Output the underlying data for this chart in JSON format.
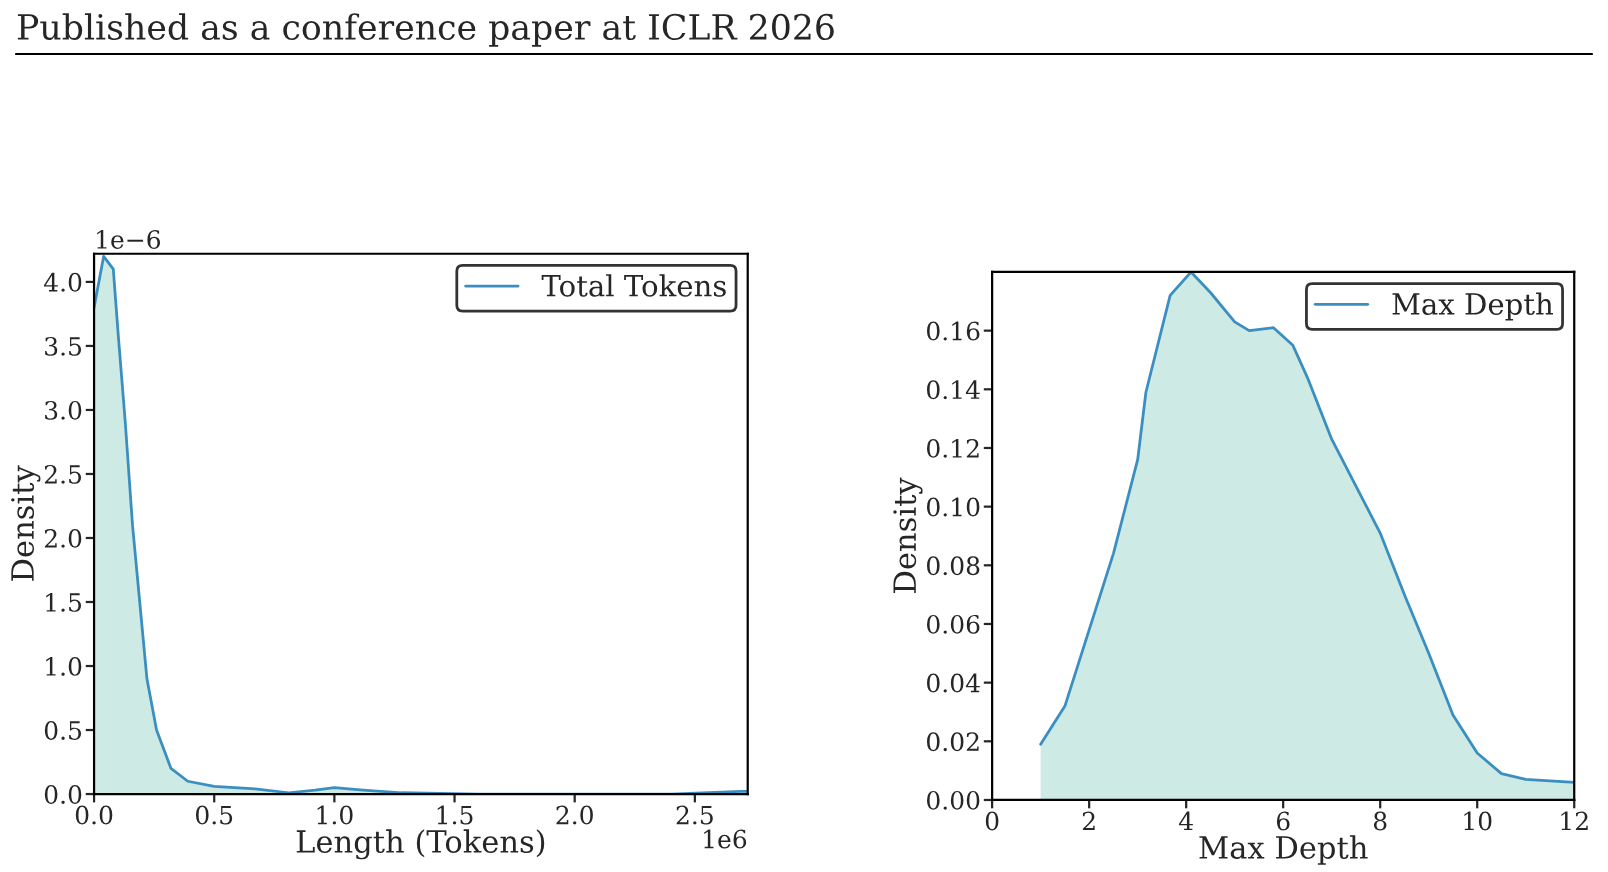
{
  "chart_data": [
    {
      "type": "area",
      "xlabel": "Length (Tokens)",
      "ylabel": "Density",
      "legend": "top right",
      "grid": false,
      "color": "#cdeae4",
      "annotations": [
        "1e−6",
        "1e6",
        "Published as a conference paper at ICLR 2026"
      ],
      "xlim": [
        0,
        2.72
      ],
      "ylim": [
        0,
        4.22
      ],
      "xticks": [
        {
          "value": 0,
          "label": "0.0"
        },
        {
          "value": 0.5,
          "label": "0.5"
        },
        {
          "value": 1,
          "label": "1.0"
        },
        {
          "value": 1.5,
          "label": "1.5"
        },
        {
          "value": 2,
          "label": "2.0"
        },
        {
          "value": 2.5,
          "label": "2.5"
        }
      ],
      "yticks": [
        {
          "value": 0,
          "label": "0.0"
        },
        {
          "value": 0.5,
          "label": "0.5"
        },
        {
          "value": 1,
          "label": "1.0"
        },
        {
          "value": 1.5,
          "label": "1.5"
        },
        {
          "value": 2,
          "label": "2.0"
        },
        {
          "value": 2.5,
          "label": "2.5"
        },
        {
          "value": 3,
          "label": "3.0"
        },
        {
          "value": 3.5,
          "label": "3.5"
        },
        {
          "value": 4,
          "label": "4.0"
        }
      ],
      "series": [
        {
          "name": "Total Tokens",
          "color": "#3a8fc0",
          "x": [
            0,
            0.04,
            0.08,
            0.1,
            0.13,
            0.16,
            0.19,
            0.22,
            0.26,
            0.32,
            0.39,
            0.5,
            0.67,
            0.81,
            0.92,
            1.0,
            1.12,
            1.28,
            1.6,
            2.0,
            2.4,
            2.69,
            2.72
          ],
          "values": [
            3.8,
            4.2,
            4.1,
            3.6,
            2.9,
            2.1,
            1.5,
            0.9,
            0.5,
            0.2,
            0.1,
            0.06,
            0.04,
            0.01,
            0.03,
            0.05,
            0.03,
            0.01,
            0,
            0,
            0,
            0.02,
            0.02
          ]
        }
      ]
    },
    {
      "type": "area",
      "xlabel": "Max Depth",
      "ylabel": "Density",
      "legend": "top right",
      "grid": false,
      "color": "#cdeae4",
      "xlim": [
        0,
        12
      ],
      "ylim": [
        0,
        0.18
      ],
      "xticks": [
        0,
        2,
        4,
        6,
        8,
        10,
        12
      ],
      "yticks": [
        {
          "value": 0,
          "label": "0.00"
        },
        {
          "value": 0.02,
          "label": "0.02"
        },
        {
          "value": 0.04,
          "label": "0.04"
        },
        {
          "value": 0.06,
          "label": "0.06"
        },
        {
          "value": 0.08,
          "label": "0.08"
        },
        {
          "value": 0.1,
          "label": "0.10"
        },
        {
          "value": 0.12,
          "label": "0.12"
        },
        {
          "value": 0.14,
          "label": "0.14"
        },
        {
          "value": 0.16,
          "label": "0.16"
        }
      ],
      "series": [
        {
          "name": "Max Depth",
          "color": "#3a8fc0",
          "x": [
            1,
            1.5,
            2,
            2.5,
            3,
            3.17,
            3.67,
            4.1,
            4.5,
            5,
            5.3,
            5.8,
            6.2,
            6.5,
            7,
            7.5,
            8,
            8.5,
            9,
            9.5,
            10,
            10.5,
            11,
            12
          ],
          "values": [
            0.019,
            0.032,
            0.058,
            0.084,
            0.116,
            0.139,
            0.172,
            0.18,
            0.173,
            0.163,
            0.16,
            0.161,
            0.155,
            0.144,
            0.123,
            0.107,
            0.091,
            0.07,
            0.05,
            0.029,
            0.016,
            0.009,
            0.007,
            0.006
          ]
        }
      ]
    }
  ]
}
